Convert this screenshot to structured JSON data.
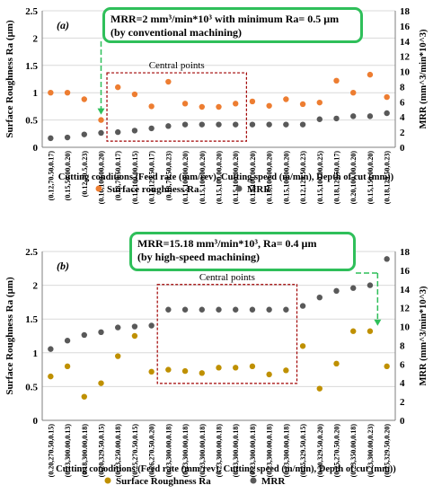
{
  "chart_data": [
    {
      "type": "scatter",
      "panel_label": "(a)",
      "xlabel": "Cutting conditions (Feed rate (mm/rev), Cutting speed (m/min), Depth of cut (mm))",
      "ylabel_left": "Surface Roughness Ra (µm)",
      "ylabel_right": "MRR (mm^3/min*10^3)",
      "ylim_left": [
        0,
        2.5
      ],
      "ylim_right": [
        0,
        18
      ],
      "yticks_left": [
        "0",
        "0.5",
        "1",
        "1.5",
        "2",
        "2.5"
      ],
      "yticks_right": [
        "0",
        "2",
        "4",
        "6",
        "8",
        "10",
        "12",
        "14",
        "16",
        "18"
      ],
      "categories": [
        "(0.12,70.50,0.17)",
        "(0.15,50.00,0.20)",
        "(0.12,70.5,0.23)",
        "(0.10,100.00,0.20)",
        "(0.18,70.50,0.17)",
        "(0.15,100.00,0.15)",
        "(0.12,129.50,0.17)",
        "(0.18,70.50,0.23)",
        "(0.15,100.00,0.20)",
        "(0.15,100.00,0.20)",
        "(0.15,100.00,0.20)",
        "(0.15,100.00,0.20)",
        "(0.15,100.00,0.20)",
        "(0.15,100.00,0.20)",
        "(0.15,100.00,0.20)",
        "(0.12,129.50,0.23)",
        "(0.15,100.00,0.25)",
        "(0.18,129.50,0.17)",
        "(0.20,100.00,0.20)",
        "(0.15,150.00,0.20)",
        "(0.18,129.50,0.23)"
      ],
      "series": [
        {
          "name": "Surface roughness Ra",
          "axis": "left",
          "color": "#ed7d31",
          "values": [
            1.0,
            1.0,
            0.88,
            0.5,
            1.1,
            0.97,
            0.75,
            1.2,
            0.8,
            0.74,
            0.74,
            0.8,
            0.84,
            0.76,
            0.88,
            0.79,
            0.82,
            1.22,
            1.0,
            1.33,
            0.92
          ]
        },
        {
          "name": "MRR",
          "axis": "right",
          "color": "#595959",
          "values": [
            1.2,
            1.3,
            1.7,
            1.9,
            2.0,
            2.2,
            2.5,
            2.8,
            3.0,
            3.0,
            3.0,
            3.0,
            3.0,
            3.0,
            3.0,
            3.0,
            3.7,
            3.8,
            4.1,
            4.1,
            4.5
          ]
        }
      ],
      "region_label": "Central points",
      "callout": {
        "line1": "MRR=2 mm³/min*10³ with minimum Ra= 0.5 µm",
        "line2": "(by conventional machining)"
      }
    },
    {
      "type": "scatter",
      "panel_label": "(b)",
      "xlabel": "Cutting conoditions (Feed rate (mm/rev), Cutting speed (m/min), Depth of cut (mm))",
      "ylabel_left": "Surface Roughness Ra (µm)",
      "ylabel_right": "MRR (mm^3/min*10^3)",
      "ylim_left": [
        0,
        2.5
      ],
      "ylim_right": [
        0,
        18
      ],
      "yticks_left": [
        "0",
        "0.5",
        "1",
        "1.5",
        "2",
        "2.5"
      ],
      "yticks_right": [
        "0",
        "2",
        "4",
        "6",
        "8",
        "10",
        "12",
        "14",
        "16",
        "18"
      ],
      "categories": [
        "(0.20,270.50,0.15)",
        "(0.23,300.00,0.13)",
        "(0.18,300.00,0.18)",
        "(0.20,329.50,0.15)",
        "(0.23,250.00,0.18)",
        "(0.25,270.50,0.15)",
        "(0.26,270.50,0.20)",
        "(0.23,300.00,0.18)",
        "(0.23,300.00,0.18)",
        "(0.23,300.00,0.18)",
        "(0.23,300.00,0.18)",
        "(0.23,300.00,0.18)",
        "(0.23,300.00,0.18)",
        "(0.23,300.00,0.18)",
        "(0.23,300.00,0.18)",
        "(0.25,329.50,0.15)",
        "(0.20,329.50,0.20)",
        "(0.25,270.50,0.20)",
        "(0.23,350.00,0.18)",
        "(0.23,300.00,0.23)",
        "(0.25,329.50,0.20)"
      ],
      "series": [
        {
          "name": "Surface Roughness Ra",
          "axis": "left",
          "color": "#bf9000",
          "values": [
            0.65,
            0.8,
            0.35,
            0.55,
            0.95,
            1.25,
            0.72,
            0.75,
            0.73,
            0.7,
            0.78,
            0.78,
            0.8,
            0.68,
            0.74,
            1.1,
            0.47,
            0.84,
            1.32,
            1.32,
            0.8
          ]
        },
        {
          "name": "MRR",
          "axis": "right",
          "color": "#595959",
          "values": [
            7.6,
            8.5,
            9.1,
            9.4,
            9.9,
            10.0,
            10.1,
            11.8,
            11.8,
            11.8,
            11.8,
            11.8,
            11.8,
            11.8,
            11.8,
            12.2,
            13.1,
            13.8,
            14.1,
            14.4,
            17.2
          ]
        }
      ],
      "region_label": "Central points",
      "callout": {
        "line1": "MRR=15.18 mm³/min*10³, Ra= 0.4 µm",
        "line2": "(by high-speed machining)"
      }
    }
  ]
}
